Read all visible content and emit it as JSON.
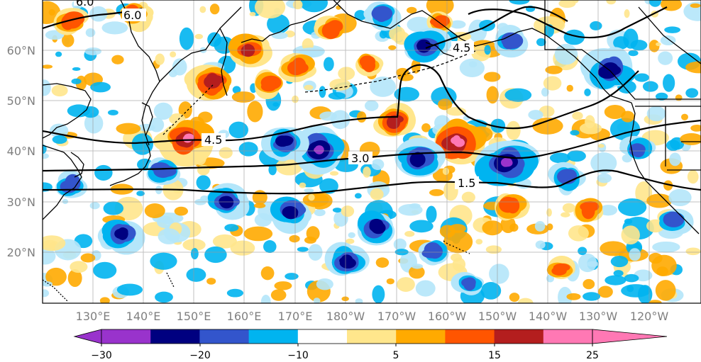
{
  "map": {
    "lat_labels": [
      "60°N",
      "50°N",
      "40°N",
      "30°N",
      "20°N"
    ],
    "lon_labels": [
      "130°E",
      "140°E",
      "150°E",
      "160°E",
      "170°E",
      "180°W",
      "170°W",
      "160°W",
      "150°W",
      "140°W",
      "130°W",
      "120°W"
    ],
    "contours": [
      {
        "value": 1.5,
        "label": "1.5"
      },
      {
        "value": 3.0,
        "label": "3.0"
      },
      {
        "value": 4.5,
        "label": "4.5"
      },
      {
        "value": 6.0,
        "label": "6.0"
      }
    ],
    "grid": true
  },
  "colorbar": {
    "ticks": [
      -30,
      -20,
      -10,
      5,
      15,
      25
    ],
    "tick_labels": [
      "−30",
      "−20",
      "−10",
      "5",
      "15",
      "25"
    ],
    "colors": [
      "#9933cc",
      "#000080",
      "#3355cc",
      "#00b4f0",
      "#b4e6fa",
      "#ffffff",
      "#ffe68c",
      "#ffaa00",
      "#ff5500",
      "#b41e1e",
      "#ff78b4"
    ],
    "extend": "both"
  }
}
